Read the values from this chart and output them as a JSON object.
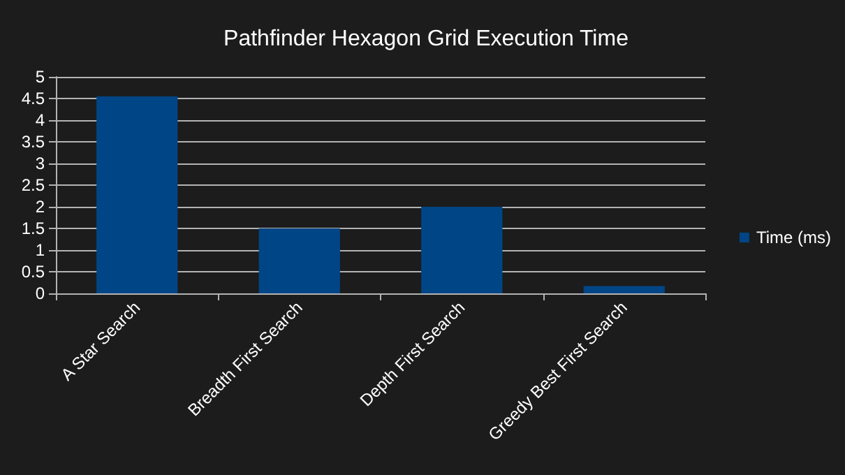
{
  "chart_data": {
    "type": "bar",
    "title": "Pathfinder Hexagon Grid Execution Time",
    "categories": [
      "A Star Search",
      "Breadth First Search",
      "Depth First Search",
      "Greedy Best First Search"
    ],
    "series": [
      {
        "name": "Time (ms)",
        "color": "#004586",
        "values": [
          4.55,
          1.5,
          2.0,
          0.17
        ]
      }
    ],
    "ylim": [
      0,
      5
    ],
    "yticks": [
      0,
      0.5,
      1,
      1.5,
      2,
      2.5,
      3,
      3.5,
      4,
      4.5,
      5
    ],
    "grid": "y",
    "legend": "right"
  }
}
